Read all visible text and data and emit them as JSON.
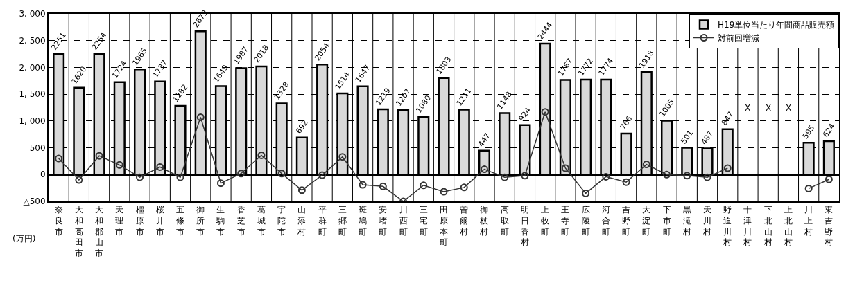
{
  "chart_data": {
    "type": "bar",
    "ylabel": "(万円)",
    "categories": [
      "奈良市",
      "大和高田市",
      "大和郡山市",
      "天理市",
      "橿原市",
      "桜井市",
      "五條市",
      "御所市",
      "生駒市",
      "香芝市",
      "葛城市",
      "宇陀市",
      "山添村",
      "平群町",
      "三郷町",
      "斑鳩町",
      "安堵町",
      "川西町",
      "三宅町",
      "田原本町",
      "曽爾村",
      "御杖村",
      "高取町",
      "明日香村",
      "上牧町",
      "王寺町",
      "広陵町",
      "河合町",
      "吉野町",
      "大淀町",
      "下市町",
      "黒滝村",
      "天川村",
      "野迫川村",
      "十津川村",
      "下北山村",
      "上北山村",
      "川上村",
      "東吉野村"
    ],
    "series": [
      {
        "name": "H19単位当たり年間商品販売額",
        "color": "#d9d9d9",
        "values": [
          2251,
          1620,
          2254,
          1724,
          1965,
          1737,
          1282,
          2673,
          1649,
          1987,
          2018,
          1328,
          692,
          2054,
          1514,
          1647,
          1219,
          1207,
          1080,
          1803,
          1211,
          447,
          1148,
          924,
          2444,
          1767,
          1772,
          1774,
          766,
          1918,
          1005,
          501,
          487,
          847,
          null,
          null,
          null,
          595,
          624
        ],
        "value_labels": [
          "2251",
          "1620",
          "2254",
          "1724",
          "1965",
          "1737",
          "1282",
          "2673",
          "1649",
          "1987",
          "2018",
          "1328",
          "692",
          "2054",
          "1514",
          "1647",
          "1219",
          "1207",
          "1080",
          "1803",
          "1211",
          "447",
          "1148",
          "924",
          "2444",
          "1767",
          "1772",
          "1774",
          "766",
          "1918",
          "1005",
          "501",
          "487",
          "847",
          null,
          null,
          null,
          "595",
          "624"
        ]
      },
      {
        "name": "対前回増減",
        "type": "line",
        "color": "#333333",
        "marker": "circle",
        "values": [
          300,
          -100,
          350,
          180,
          -50,
          140,
          -50,
          1070,
          -160,
          20,
          360,
          20,
          -290,
          -10,
          330,
          -190,
          -220,
          -500,
          -200,
          -320,
          -240,
          100,
          -50,
          -20,
          1170,
          120,
          -350,
          -40,
          -140,
          190,
          0,
          -20,
          -50,
          120,
          null,
          null,
          null,
          -260,
          -90
        ]
      }
    ],
    "annotations": [
      "X",
      "X",
      "X"
    ],
    "ylim": [
      -500,
      3000
    ],
    "yticks": [
      {
        "value": -500,
        "label": "△500"
      },
      0,
      {
        "value": 500,
        "label": "500"
      },
      {
        "value": 1000,
        "label": "1, 000"
      },
      {
        "value": 1500,
        "label": "1, 500"
      },
      {
        "value": 2000,
        "label": "2, 000"
      },
      {
        "value": 2500,
        "label": "2, 500"
      },
      {
        "value": 3000,
        "label": "3, 000"
      }
    ],
    "grid": true,
    "legend": "top right"
  }
}
